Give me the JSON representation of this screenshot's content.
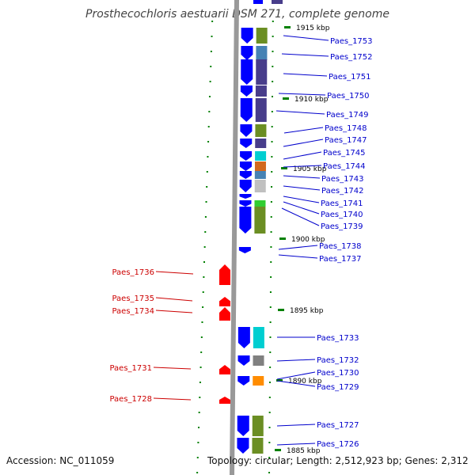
{
  "title": "Prosthecochloris aestuarii DSM 271, complete genome",
  "accession": "Accession: NC_011059",
  "topology": "Topology: circular; Length: 2,512,923 bp; Genes: 2,312",
  "colors": {
    "reverse_gene": "#ff0000",
    "forward_gene": "#0000ff",
    "backbone": "#999999",
    "tick": "#008000",
    "label_forward": "#0000cc",
    "label_reverse": "#cc0000"
  },
  "kbp_markers": [
    {
      "label": "1915 kbp"
    },
    {
      "label": "1910 kbp"
    },
    {
      "label": "1905 kbp"
    },
    {
      "label": "1900 kbp"
    },
    {
      "label": "1895 kbp"
    },
    {
      "label": "1890 kbp"
    },
    {
      "label": "1885 kbp"
    }
  ],
  "forward_genes": [
    {
      "label": "Paes_1753"
    },
    {
      "label": "Paes_1752"
    },
    {
      "label": "Paes_1751"
    },
    {
      "label": "Paes_1750"
    },
    {
      "label": "Paes_1749"
    },
    {
      "label": "Paes_1748"
    },
    {
      "label": "Paes_1747"
    },
    {
      "label": "Paes_1745"
    },
    {
      "label": "Paes_1744"
    },
    {
      "label": "Paes_1743"
    },
    {
      "label": "Paes_1742"
    },
    {
      "label": "Paes_1741"
    },
    {
      "label": "Paes_1740"
    },
    {
      "label": "Paes_1739"
    },
    {
      "label": "Paes_1738"
    },
    {
      "label": "Paes_1737"
    },
    {
      "label": "Paes_1733"
    },
    {
      "label": "Paes_1732"
    },
    {
      "label": "Paes_1730"
    },
    {
      "label": "Paes_1729"
    },
    {
      "label": "Paes_1727"
    },
    {
      "label": "Paes_1726"
    }
  ],
  "reverse_genes": [
    {
      "label": "Paes_1736"
    },
    {
      "label": "Paes_1735"
    },
    {
      "label": "Paes_1734"
    },
    {
      "label": "Paes_1731"
    },
    {
      "label": "Paes_1728"
    }
  ]
}
